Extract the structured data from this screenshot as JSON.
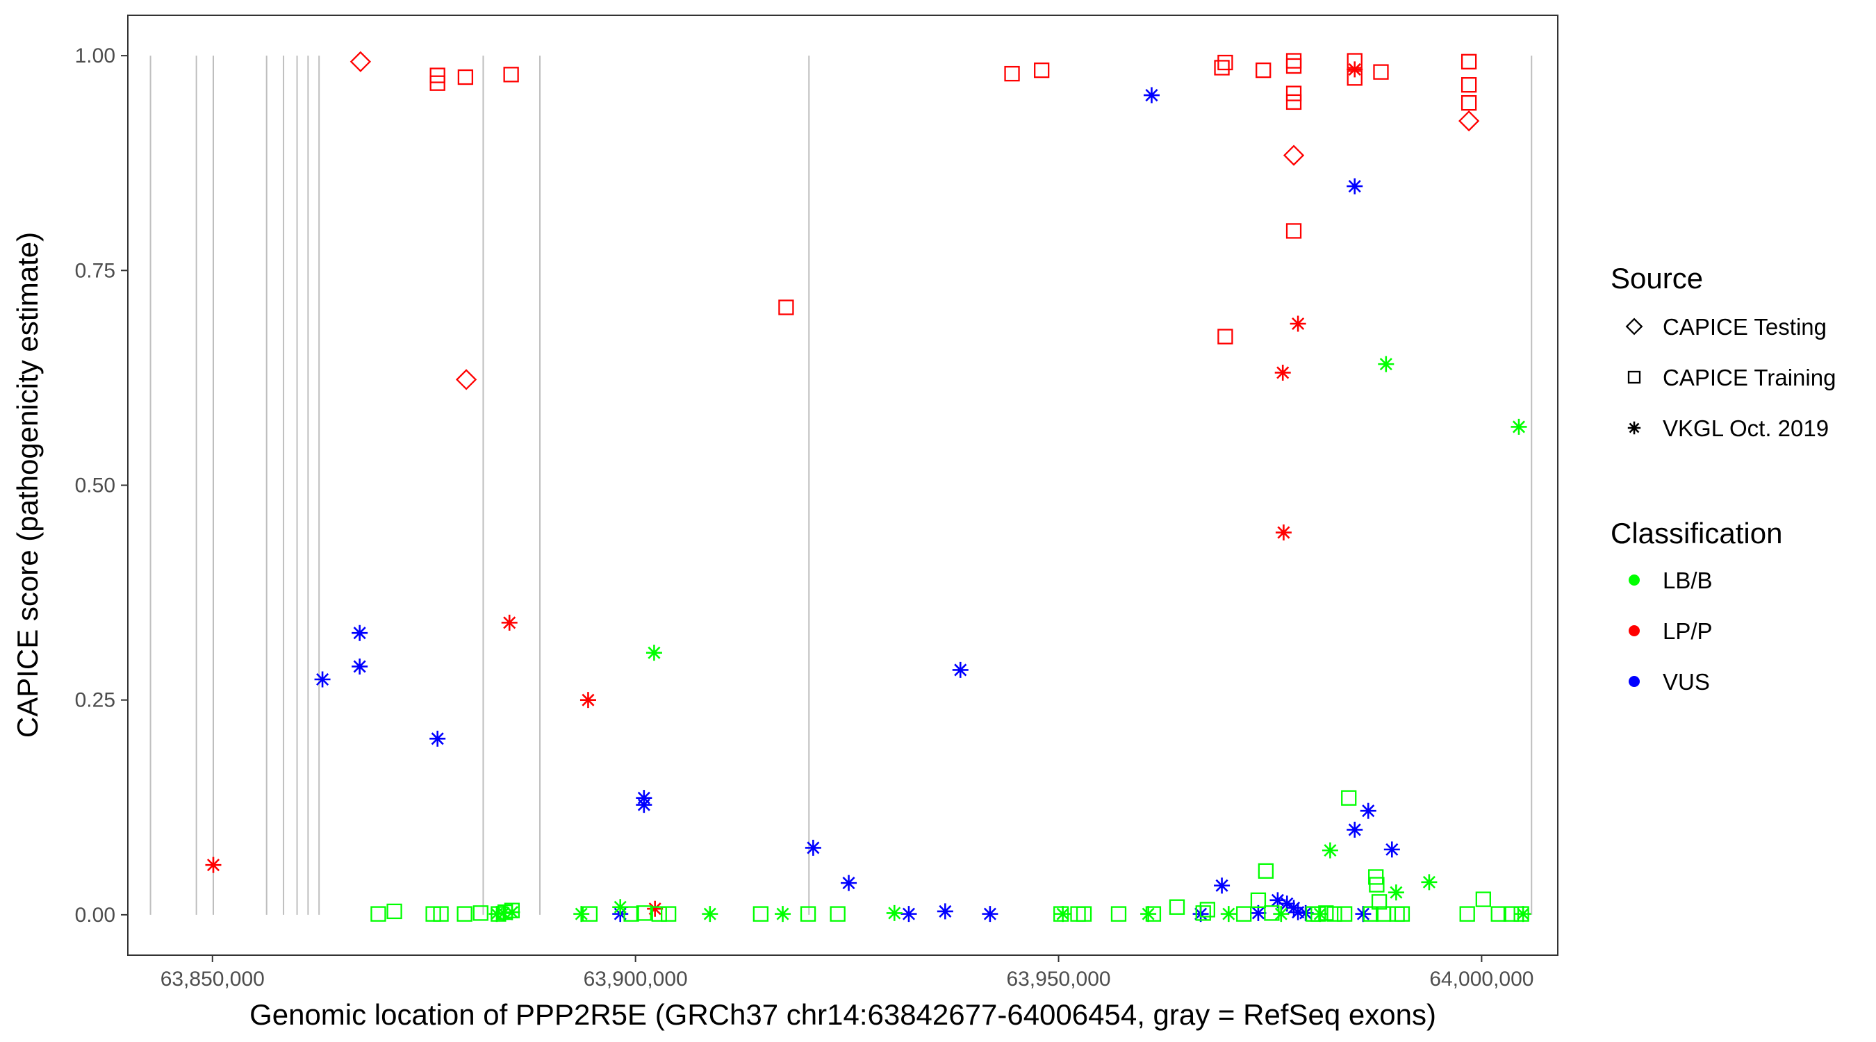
{
  "chart_data": {
    "type": "scatter",
    "xlabel": "Genomic location of PPP2R5E (GRCh37 chr14:63842677-64006454, gray = RefSeq exons)",
    "ylabel": "CAPICE score (pathogenicity estimate)",
    "xlim": [
      63840000,
      64009000
    ],
    "ylim": [
      -0.047,
      1.047
    ],
    "x_ticks": [
      63850000,
      63900000,
      63950000,
      64000000
    ],
    "x_tick_labels": [
      "63,850,000",
      "63,900,000",
      "63,950,000",
      "64,000,000"
    ],
    "y_ticks": [
      0,
      0.25,
      0.5,
      0.75,
      1
    ],
    "y_tick_labels": [
      "0.00",
      "0.25",
      "0.50",
      "0.75",
      "1.00"
    ],
    "grid": false,
    "exon_lines_color": "#bebebe",
    "exon_positions": [
      63842677,
      63848100,
      63850100,
      63856400,
      63858400,
      63860000,
      63861300,
      63862600,
      63882000,
      63888700,
      63920500,
      64005900
    ],
    "legend_position": "right",
    "legend": {
      "source_title": "Source",
      "source_items": [
        {
          "label": "CAPICE Testing",
          "shape": "diamond"
        },
        {
          "label": "CAPICE Training",
          "shape": "square"
        },
        {
          "label": "VKGL Oct. 2019",
          "shape": "asterisk"
        }
      ],
      "class_title": "Classification",
      "class_items": [
        {
          "label": "LB/B",
          "color": "#00ff00"
        },
        {
          "label": "LP/P",
          "color": "#ff0000"
        },
        {
          "label": "VUS",
          "color": "#0000ff"
        }
      ]
    },
    "colors": {
      "LB/B": "#00ff00",
      "LP/P": "#ff0000",
      "VUS": "#0000ff"
    },
    "series": [
      {
        "source": "CAPICE Testing",
        "class": "LP/P",
        "points": [
          [
            63867500,
            0.993
          ],
          [
            63880000,
            0.623
          ],
          [
            63977800,
            0.884
          ],
          [
            63998500,
            0.924
          ]
        ]
      },
      {
        "source": "CAPICE Training",
        "class": "LP/P",
        "points": [
          [
            63876600,
            0.977
          ],
          [
            63876600,
            0.968
          ],
          [
            63879900,
            0.975
          ],
          [
            63885300,
            0.978
          ],
          [
            63944500,
            0.979
          ],
          [
            63948000,
            0.983
          ],
          [
            63917800,
            0.707
          ],
          [
            63969300,
            0.986
          ],
          [
            63969700,
            0.992
          ],
          [
            63969700,
            0.673
          ],
          [
            63974200,
            0.983
          ],
          [
            63977800,
            0.994
          ],
          [
            63977800,
            0.988
          ],
          [
            63977800,
            0.956
          ],
          [
            63977800,
            0.946
          ],
          [
            63977800,
            0.796
          ],
          [
            63985000,
            0.994
          ],
          [
            63985000,
            0.974
          ],
          [
            63988100,
            0.981
          ],
          [
            63998500,
            0.993
          ],
          [
            63998500,
            0.966
          ],
          [
            63998500,
            0.945
          ]
        ]
      },
      {
        "source": "VKGL Oct. 2019",
        "class": "LP/P",
        "points": [
          [
            63850100,
            0.058
          ],
          [
            63885100,
            0.34
          ],
          [
            63894400,
            0.25
          ],
          [
            63902300,
            0.007
          ],
          [
            63976500,
            0.631
          ],
          [
            63976600,
            0.445
          ],
          [
            63978300,
            0.688
          ],
          [
            63985000,
            0.984
          ]
        ]
      },
      {
        "source": "VKGL Oct. 2019",
        "class": "VUS",
        "points": [
          [
            63863000,
            0.274
          ],
          [
            63867400,
            0.328
          ],
          [
            63867400,
            0.289
          ],
          [
            63876600,
            0.205
          ],
          [
            63898200,
            0.001
          ],
          [
            63901000,
            0.136
          ],
          [
            63901000,
            0.128
          ],
          [
            63921000,
            0.078
          ],
          [
            63925200,
            0.037
          ],
          [
            63932300,
            0.001
          ],
          [
            63936600,
            0.004
          ],
          [
            63938400,
            0.285
          ],
          [
            63941900,
            0.001
          ],
          [
            63961000,
            0.954
          ],
          [
            63966800,
            0.001
          ],
          [
            63969300,
            0.034
          ],
          [
            63973600,
            0.002
          ],
          [
            63975900,
            0.017
          ],
          [
            63977000,
            0.013
          ],
          [
            63977800,
            0.008
          ],
          [
            63978300,
            0.003
          ],
          [
            63979200,
            0.002
          ],
          [
            63985000,
            0.848
          ],
          [
            63985000,
            0.099
          ],
          [
            63986000,
            0.001
          ],
          [
            63986600,
            0.121
          ],
          [
            63989400,
            0.076
          ]
        ]
      },
      {
        "source": "VKGL Oct. 2019",
        "class": "LB/B",
        "points": [
          [
            63883600,
            0.001
          ],
          [
            63884400,
            0.002
          ],
          [
            63885400,
            0.003
          ],
          [
            63893600,
            0.001
          ],
          [
            63898200,
            0.009
          ],
          [
            63902200,
            0.305
          ],
          [
            63908800,
            0.001
          ],
          [
            63917400,
            0.001
          ],
          [
            63930600,
            0.002
          ],
          [
            63950500,
            0.001
          ],
          [
            63960600,
            0.001
          ],
          [
            63970100,
            0.001
          ],
          [
            63976300,
            0.001
          ],
          [
            63980900,
            0.001
          ],
          [
            63982100,
            0.075
          ],
          [
            63988700,
            0.641
          ],
          [
            63989900,
            0.026
          ],
          [
            63993800,
            0.038
          ],
          [
            64004400,
            0.568
          ],
          [
            64004900,
            0.001
          ]
        ]
      },
      {
        "source": "CAPICE Training",
        "class": "LB/B",
        "points": [
          [
            63869600,
            0.001
          ],
          [
            63871500,
            0.004
          ],
          [
            63876100,
            0.001
          ],
          [
            63877000,
            0.001
          ],
          [
            63879800,
            0.001
          ],
          [
            63881700,
            0.002
          ],
          [
            63883800,
            0.001
          ],
          [
            63884600,
            0.003
          ],
          [
            63885400,
            0.005
          ],
          [
            63894600,
            0.001
          ],
          [
            63899500,
            0.001
          ],
          [
            63901000,
            0.002
          ],
          [
            63902800,
            0.001
          ],
          [
            63903900,
            0.001
          ],
          [
            63914800,
            0.001
          ],
          [
            63920400,
            0.001
          ],
          [
            63923900,
            0.001
          ],
          [
            63950300,
            0.001
          ],
          [
            63952300,
            0.001
          ],
          [
            63953000,
            0.001
          ],
          [
            63957100,
            0.001
          ],
          [
            63961200,
            0.001
          ],
          [
            63964000,
            0.009
          ],
          [
            63967100,
            0.002
          ],
          [
            63967600,
            0.006
          ],
          [
            63971900,
            0.001
          ],
          [
            63973600,
            0.017
          ],
          [
            63974500,
            0.051
          ],
          [
            63975200,
            0.002
          ],
          [
            63980100,
            0.001
          ],
          [
            63980700,
            0.001
          ],
          [
            63981600,
            0.002
          ],
          [
            63982600,
            0.001
          ],
          [
            63983800,
            0.001
          ],
          [
            63984300,
            0.136
          ],
          [
            63986900,
            0.001
          ],
          [
            63987500,
            0.044
          ],
          [
            63987600,
            0.035
          ],
          [
            63987900,
            0.015
          ],
          [
            63988400,
            0.001
          ],
          [
            63990000,
            0.001
          ],
          [
            63990600,
            0.001
          ],
          [
            63998300,
            0.001
          ],
          [
            64000200,
            0.018
          ],
          [
            64002000,
            0.001
          ],
          [
            64003500,
            0.001
          ],
          [
            64004700,
            0.001
          ]
        ]
      }
    ]
  }
}
